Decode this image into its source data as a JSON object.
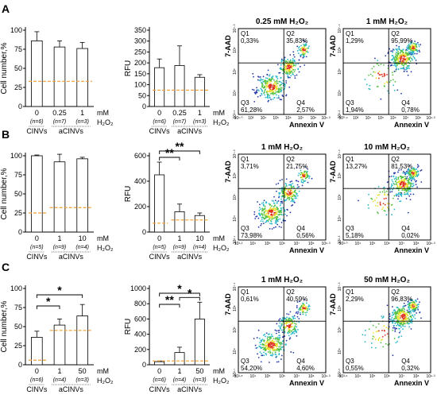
{
  "rows": [
    {
      "label": "A",
      "bar_charts": [
        {
          "chart_data": {
            "type": "bar",
            "ylabel": "Cell number,%",
            "ylim": [
              0,
              100
            ],
            "ticks": [
              "0",
              "25",
              "50",
              "75",
              "100"
            ],
            "categories": [
              "0",
              "0.25",
              "1"
            ],
            "n_labels": [
              "(n=6)",
              "(n=7)",
              "(n=3)"
            ],
            "values": [
              86,
              78,
              76
            ],
            "errors": [
              12,
              8,
              8
            ],
            "reference": 33,
            "unit": [
              "mM",
              "H₂O₂"
            ],
            "groups": [
              "CINVs",
              "aCINVs"
            ],
            "significance": []
          }
        },
        {
          "chart_data": {
            "type": "bar",
            "ylabel": "RFU",
            "ylim": [
              0,
              350
            ],
            "ticks": [
              "0",
              "50",
              "100",
              "150",
              "200",
              "250",
              "300",
              "350"
            ],
            "categories": [
              "0",
              "0.25",
              "1"
            ],
            "n_labels": [
              "(n=6)",
              "(n=7)",
              "(n=3)"
            ],
            "values": [
              178,
              188,
              134
            ],
            "errors": [
              40,
              90,
              12
            ],
            "reference": 75,
            "unit": [
              "mM",
              "H₂O₂"
            ],
            "groups": [
              "CINVs",
              "aCINVs"
            ],
            "significance": []
          }
        }
      ],
      "flow_plots": [
        {
          "title": "0.25 mM H₂O₂",
          "quadrants": {
            "q1": [
              "Q1",
              "0,33%"
            ],
            "q2": [
              "Q2",
              "35,83%"
            ],
            "q3": [
              "Q3",
              "61,28%"
            ],
            "q4": [
              "Q4",
              "2,57%"
            ]
          },
          "xlabel": "Annexin V",
          "ylabel": "7-AAD",
          "xticks": [
            "10¹·⁰",
            "10³",
            "10⁴",
            "10⁵",
            "10⁶",
            "10⁷",
            "10⁸",
            "10⁹·³"
          ],
          "yticks": [
            "10³·⁵",
            "10⁴",
            "10⁵",
            "10⁶",
            "10⁷·³"
          ]
        },
        {
          "title": "1 mM H₂O₂",
          "quadrants": {
            "q1": [
              "Q1",
              "1,29%"
            ],
            "q2": [
              "Q2",
              "95,99%"
            ],
            "q3": [
              "Q3",
              "1,94%"
            ],
            "q4": [
              "Q4",
              "0,78%"
            ]
          },
          "xlabel": "Annexin V",
          "ylabel": "7-AAD",
          "xticks": [
            "10⁰·⁹",
            "10³",
            "10⁴",
            "10⁵",
            "10⁶",
            "10⁷",
            "10⁸",
            "10⁹·³"
          ],
          "yticks": [
            "10²·²",
            "10⁴",
            "10⁵",
            "10⁶",
            "10⁷·⁴"
          ]
        }
      ]
    },
    {
      "label": "B",
      "bar_charts": [
        {
          "chart_data": {
            "type": "bar",
            "ylabel": "Cell number,%",
            "ylim": [
              0,
              100
            ],
            "ticks": [
              "0",
              "25",
              "50",
              "75",
              "100"
            ],
            "categories": [
              "0",
              "1",
              "10"
            ],
            "n_labels": [
              "(n=5)",
              "(n=9)",
              "(n=4)"
            ],
            "values": [
              100,
              92,
              96
            ],
            "errors": [
              1,
              14,
              2
            ],
            "reference": 25,
            "reference2": 32,
            "unit": [
              "mM",
              "H₂O₂"
            ],
            "groups": [
              "CINVs",
              "aCINVs"
            ],
            "significance": []
          }
        },
        {
          "chart_data": {
            "type": "bar",
            "ylabel": "RFU",
            "ylim": [
              0,
              600
            ],
            "ticks": [
              "0",
              "200",
              "400",
              "600"
            ],
            "categories": [
              "0",
              "1",
              "10"
            ],
            "n_labels": [
              "(n=5)",
              "(n=9)",
              "(n=4)"
            ],
            "values": [
              450,
              160,
              130
            ],
            "errors": [
              100,
              60,
              20
            ],
            "reference": 70,
            "reference2": 95,
            "unit": [
              "mM",
              "H₂O₂"
            ],
            "groups": [
              "CINVs",
              "aCINVs"
            ],
            "significance": [
              {
                "from": 0,
                "to": 1,
                "label": "**",
                "level": 0
              },
              {
                "from": 0,
                "to": 2,
                "label": "**",
                "level": 1
              }
            ]
          }
        }
      ],
      "flow_plots": [
        {
          "title": "1 mM H₂O₂",
          "quadrants": {
            "q1": [
              "Q1",
              "3,71%"
            ],
            "q2": [
              "Q2",
              "21,75%"
            ],
            "q3": [
              "Q3",
              "73,98%"
            ],
            "q4": [
              "Q4",
              "0,56%"
            ]
          },
          "xlabel": "Annexin V",
          "ylabel": "7-AAD",
          "xticks": [
            "10³·²",
            "10⁴",
            "10⁵",
            "10⁶",
            "10⁷",
            "10⁸",
            "10⁹·³"
          ],
          "yticks": [
            "10²·¹",
            "10⁴",
            "10⁵",
            "10⁶",
            "10⁷·³"
          ]
        },
        {
          "title": "10 mM H₂O₂",
          "quadrants": {
            "q1": [
              "Q1",
              "13,27%"
            ],
            "q2": [
              "Q2",
              "81,53%"
            ],
            "q3": [
              "Q3",
              "5,18%"
            ],
            "q4": [
              "Q4",
              "0,02%"
            ]
          },
          "xlabel": "Annexin V",
          "ylabel": "7-AAD",
          "xticks": [
            "10³·⁰",
            "10⁴",
            "10⁵",
            "10⁶",
            "10⁷",
            "10⁸",
            "10⁹·³"
          ],
          "yticks": [
            "10²·³",
            "10⁴",
            "10⁵",
            "10⁶",
            "10⁷·⁴"
          ]
        }
      ]
    },
    {
      "label": "C",
      "bar_charts": [
        {
          "chart_data": {
            "type": "bar",
            "ylabel": "Cell number,%",
            "ylim": [
              0,
              100
            ],
            "ticks": [
              "0",
              "25",
              "50",
              "75",
              "100"
            ],
            "categories": [
              "0",
              "1",
              "50"
            ],
            "n_labels": [
              "(n=6)",
              "(n=4)",
              "(n=3)"
            ],
            "values": [
              36,
              52,
              64
            ],
            "errors": [
              8,
              8,
              15
            ],
            "reference": 6,
            "reference2": 45,
            "unit": [
              "mM",
              "H₂O₂"
            ],
            "groups": [
              "CINVs",
              "aCINVs"
            ],
            "significance": [
              {
                "from": 0,
                "to": 1,
                "label": "*",
                "level": 0
              },
              {
                "from": 0,
                "to": 2,
                "label": "*",
                "level": 1
              }
            ]
          }
        },
        {
          "chart_data": {
            "type": "bar",
            "ylabel": "RFU",
            "ylim": [
              0,
              1000
            ],
            "ticks": [
              "0",
              "200",
              "400",
              "600",
              "800",
              "1000"
            ],
            "categories": [
              "0",
              "1",
              "50"
            ],
            "n_labels": [
              "(n=6)",
              "(n=4)",
              "(n=3)"
            ],
            "values": [
              40,
              160,
              600
            ],
            "errors": [
              10,
              70,
              220
            ],
            "reference": 50,
            "unit": [
              "mM",
              "H₂O₂"
            ],
            "groups": [
              "CINVs",
              "aCINVs"
            ],
            "significance": [
              {
                "from": 1,
                "to": 2,
                "label": "*",
                "level": 0
              },
              {
                "from": 0,
                "to": 1,
                "label": "**",
                "level": 1
              },
              {
                "from": 0,
                "to": 2,
                "label": "*",
                "level": 2
              }
            ]
          }
        }
      ],
      "flow_plots": [
        {
          "title": "1 mM H₂O₂",
          "quadrants": {
            "q1": [
              "Q1",
              "0,61%"
            ],
            "q2": [
              "Q2",
              "40,59%"
            ],
            "q3": [
              "Q3",
              "54,20%"
            ],
            "q4": [
              "Q4",
              "4,60%"
            ]
          },
          "xlabel": "Annexin V",
          "ylabel": "7-AAD",
          "xticks": [
            "10³·⁸",
            "10⁴",
            "10⁵",
            "10⁶",
            "10⁷",
            "10⁸",
            "10⁹·³"
          ],
          "yticks": [
            "10²·⁷",
            "10⁴",
            "10⁵",
            "10⁶",
            "10⁷·¹"
          ]
        },
        {
          "title": "50 mM H₂O₂",
          "quadrants": {
            "q1": [
              "Q1",
              "2,29%"
            ],
            "q2": [
              "Q2",
              "96,83%"
            ],
            "q3": [
              "Q3",
              "0,55%"
            ],
            "q4": [
              "Q4",
              "0,32%"
            ]
          },
          "xlabel": "Annexin V",
          "ylabel": "7-AAD",
          "xticks": [
            "10³·⁶",
            "10⁴",
            "10⁵",
            "10⁶",
            "10⁷",
            "10⁸",
            "10⁹·³"
          ],
          "yticks": [
            "10²·⁵",
            "10⁴",
            "10⁵",
            "10⁶",
            "10⁷·³"
          ]
        }
      ]
    }
  ],
  "colors": {
    "reference_line": "#f0a030",
    "axis": "#000000",
    "flow_blue": "#2838a8",
    "flow_cyan": "#28b8c8",
    "flow_green": "#50c040",
    "flow_yellow": "#e8e030",
    "flow_red": "#e03020"
  }
}
